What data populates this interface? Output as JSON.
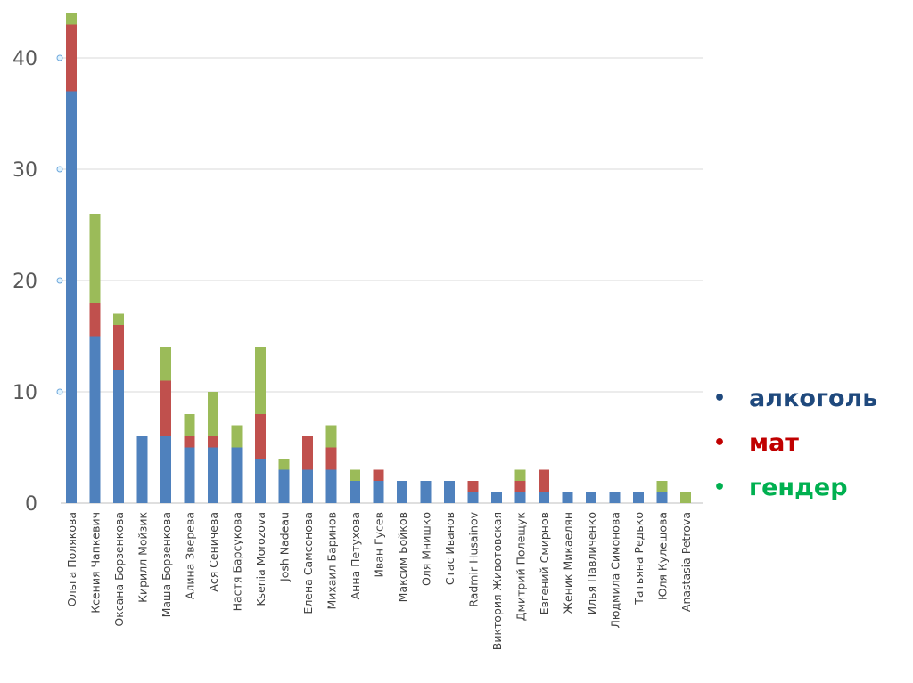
{
  "chart_data": {
    "type": "bar",
    "stacked": true,
    "title": "",
    "xlabel": "",
    "ylabel": "",
    "ylim": [
      0,
      44
    ],
    "yticks": [
      0,
      10,
      20,
      30,
      40
    ],
    "grid": true,
    "legend_position": "right",
    "categories": [
      "Ольга Полякова",
      "Ксения Чапкевич",
      "Оксана Борзенкова",
      "Кирилл Мойзик",
      "Маша Борзенкова",
      "Алина Зверева",
      "Ася Сеничева",
      "Настя Барсукова",
      "Ksenia Morozova",
      "Josh Nadeau",
      "Елена Самсонова",
      "Михаил Баринов",
      "Анна Петухова",
      "Иван Гусев",
      "Максим Бойков",
      "Оля Мнишко",
      "Стас Иванов",
      "Radmir Husainov",
      "Виктория Животовская",
      "Дмитрий Полещук",
      "Евгений Смирнов",
      "Женик Микаелян",
      "Илья Павличенко",
      "Людмила Симонова",
      "Татьяна Редько",
      "Юля Кулешова",
      "Anastasia Petrova"
    ],
    "series": [
      {
        "name": "алкоголь",
        "color": "#4f81bd",
        "legend_color": "#1f497d",
        "values": [
          37,
          15,
          12,
          6,
          6,
          5,
          5,
          5,
          4,
          3,
          3,
          3,
          2,
          2,
          2,
          2,
          2,
          1,
          1,
          1,
          1,
          1,
          1,
          1,
          1,
          1,
          0
        ]
      },
      {
        "name": "мат",
        "color": "#c0504d",
        "legend_color": "#c00000",
        "values": [
          6,
          3,
          4,
          0,
          5,
          1,
          1,
          0,
          4,
          0,
          3,
          2,
          0,
          1,
          0,
          0,
          0,
          1,
          0,
          1,
          2,
          0,
          0,
          0,
          0,
          0,
          0
        ]
      },
      {
        "name": "гендер",
        "color": "#9bbb59",
        "legend_color": "#00b050",
        "values": [
          1,
          8,
          1,
          0,
          3,
          2,
          4,
          2,
          6,
          1,
          0,
          2,
          1,
          0,
          0,
          0,
          0,
          0,
          0,
          1,
          0,
          0,
          0,
          0,
          0,
          1,
          1
        ]
      }
    ]
  }
}
